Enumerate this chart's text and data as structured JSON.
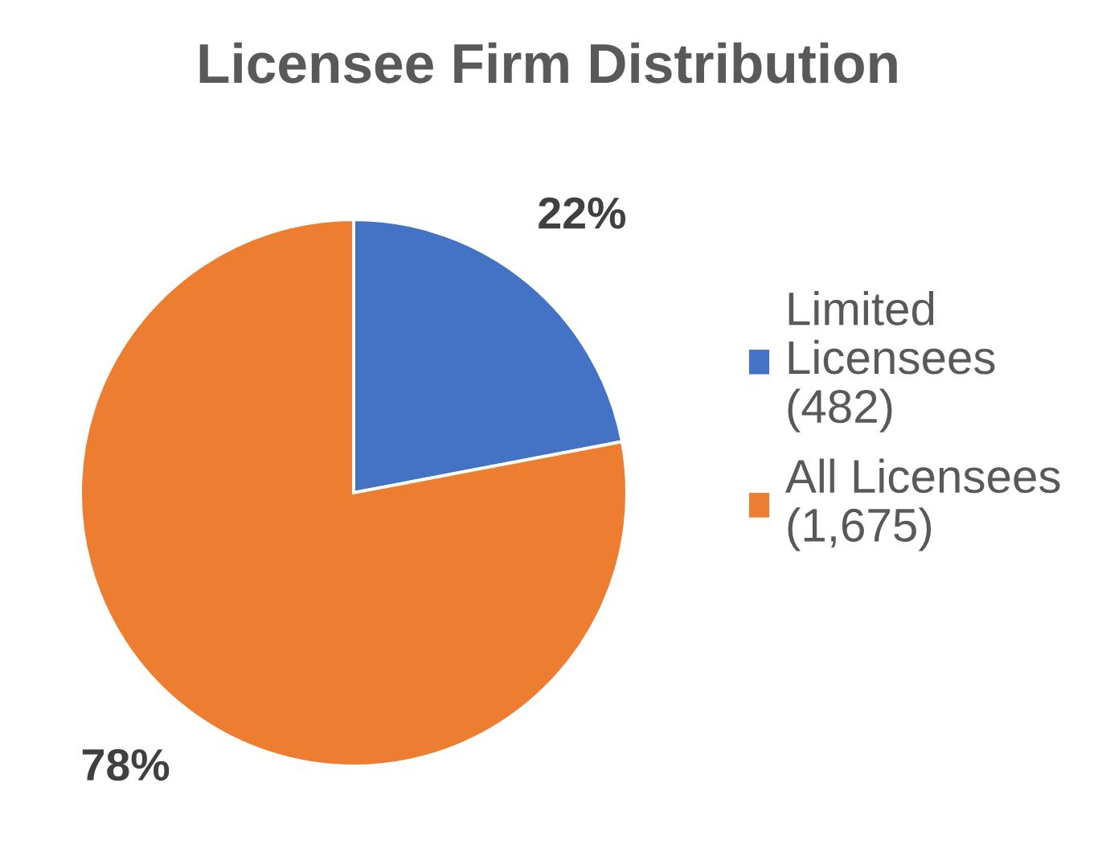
{
  "chart_data": {
    "type": "pie",
    "title": "Licensee Firm Distribution",
    "categories": [
      "Limited Licensees (482)",
      "All Licensees (1,675)"
    ],
    "values": [
      22,
      78
    ],
    "colors": [
      "#4472c4",
      "#ed7d31"
    ],
    "value_labels": [
      "22%",
      "78%"
    ],
    "legend": "right"
  }
}
